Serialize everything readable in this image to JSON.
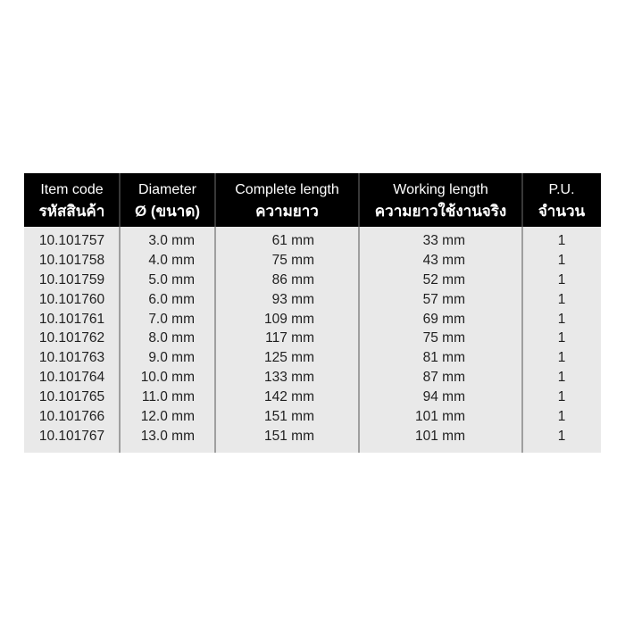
{
  "table": {
    "columns": [
      {
        "key": "code",
        "label_en": "Item code",
        "label_th": "รหัสสินค้า"
      },
      {
        "key": "diameter",
        "label_en": "Diameter",
        "label_th": "Ø (ขนาด)"
      },
      {
        "key": "complete",
        "label_en": "Complete length",
        "label_th": "ความยาว"
      },
      {
        "key": "working",
        "label_en": "Working length",
        "label_th": "ความยาวใช้งานจริง"
      },
      {
        "key": "pu",
        "label_en": "P.U.",
        "label_th": "จำนวน"
      }
    ],
    "rows": [
      {
        "code": "10.101757",
        "diameter": "3.0 mm",
        "complete": "61 mm",
        "working": "33 mm",
        "pu": "1"
      },
      {
        "code": "10.101758",
        "diameter": "4.0 mm",
        "complete": "75 mm",
        "working": "43 mm",
        "pu": "1"
      },
      {
        "code": "10.101759",
        "diameter": "5.0 mm",
        "complete": "86 mm",
        "working": "52 mm",
        "pu": "1"
      },
      {
        "code": "10.101760",
        "diameter": "6.0 mm",
        "complete": "93 mm",
        "working": "57 mm",
        "pu": "1"
      },
      {
        "code": "10.101761",
        "diameter": "7.0 mm",
        "complete": "109 mm",
        "working": "69 mm",
        "pu": "1"
      },
      {
        "code": "10.101762",
        "diameter": "8.0 mm",
        "complete": "117 mm",
        "working": "75 mm",
        "pu": "1"
      },
      {
        "code": "10.101763",
        "diameter": "9.0 mm",
        "complete": "125 mm",
        "working": "81 mm",
        "pu": "1"
      },
      {
        "code": "10.101764",
        "diameter": "10.0 mm",
        "complete": "133 mm",
        "working": "87 mm",
        "pu": "1"
      },
      {
        "code": "10.101765",
        "diameter": "11.0 mm",
        "complete": "142 mm",
        "working": "94 mm",
        "pu": "1"
      },
      {
        "code": "10.101766",
        "diameter": "12.0 mm",
        "complete": "151 mm",
        "working": "101 mm",
        "pu": "1"
      },
      {
        "code": "10.101767",
        "diameter": "13.0 mm",
        "complete": "151 mm",
        "working": "101 mm",
        "pu": "1"
      }
    ],
    "colors": {
      "page_bg": "#ffffff",
      "header_bg": "#000000",
      "header_text": "#ffffff",
      "body_bg": "#e9e9e9",
      "body_text": "#1f1f1f",
      "divider_header": "#383838",
      "divider_body": "#9f9f9f"
    }
  }
}
